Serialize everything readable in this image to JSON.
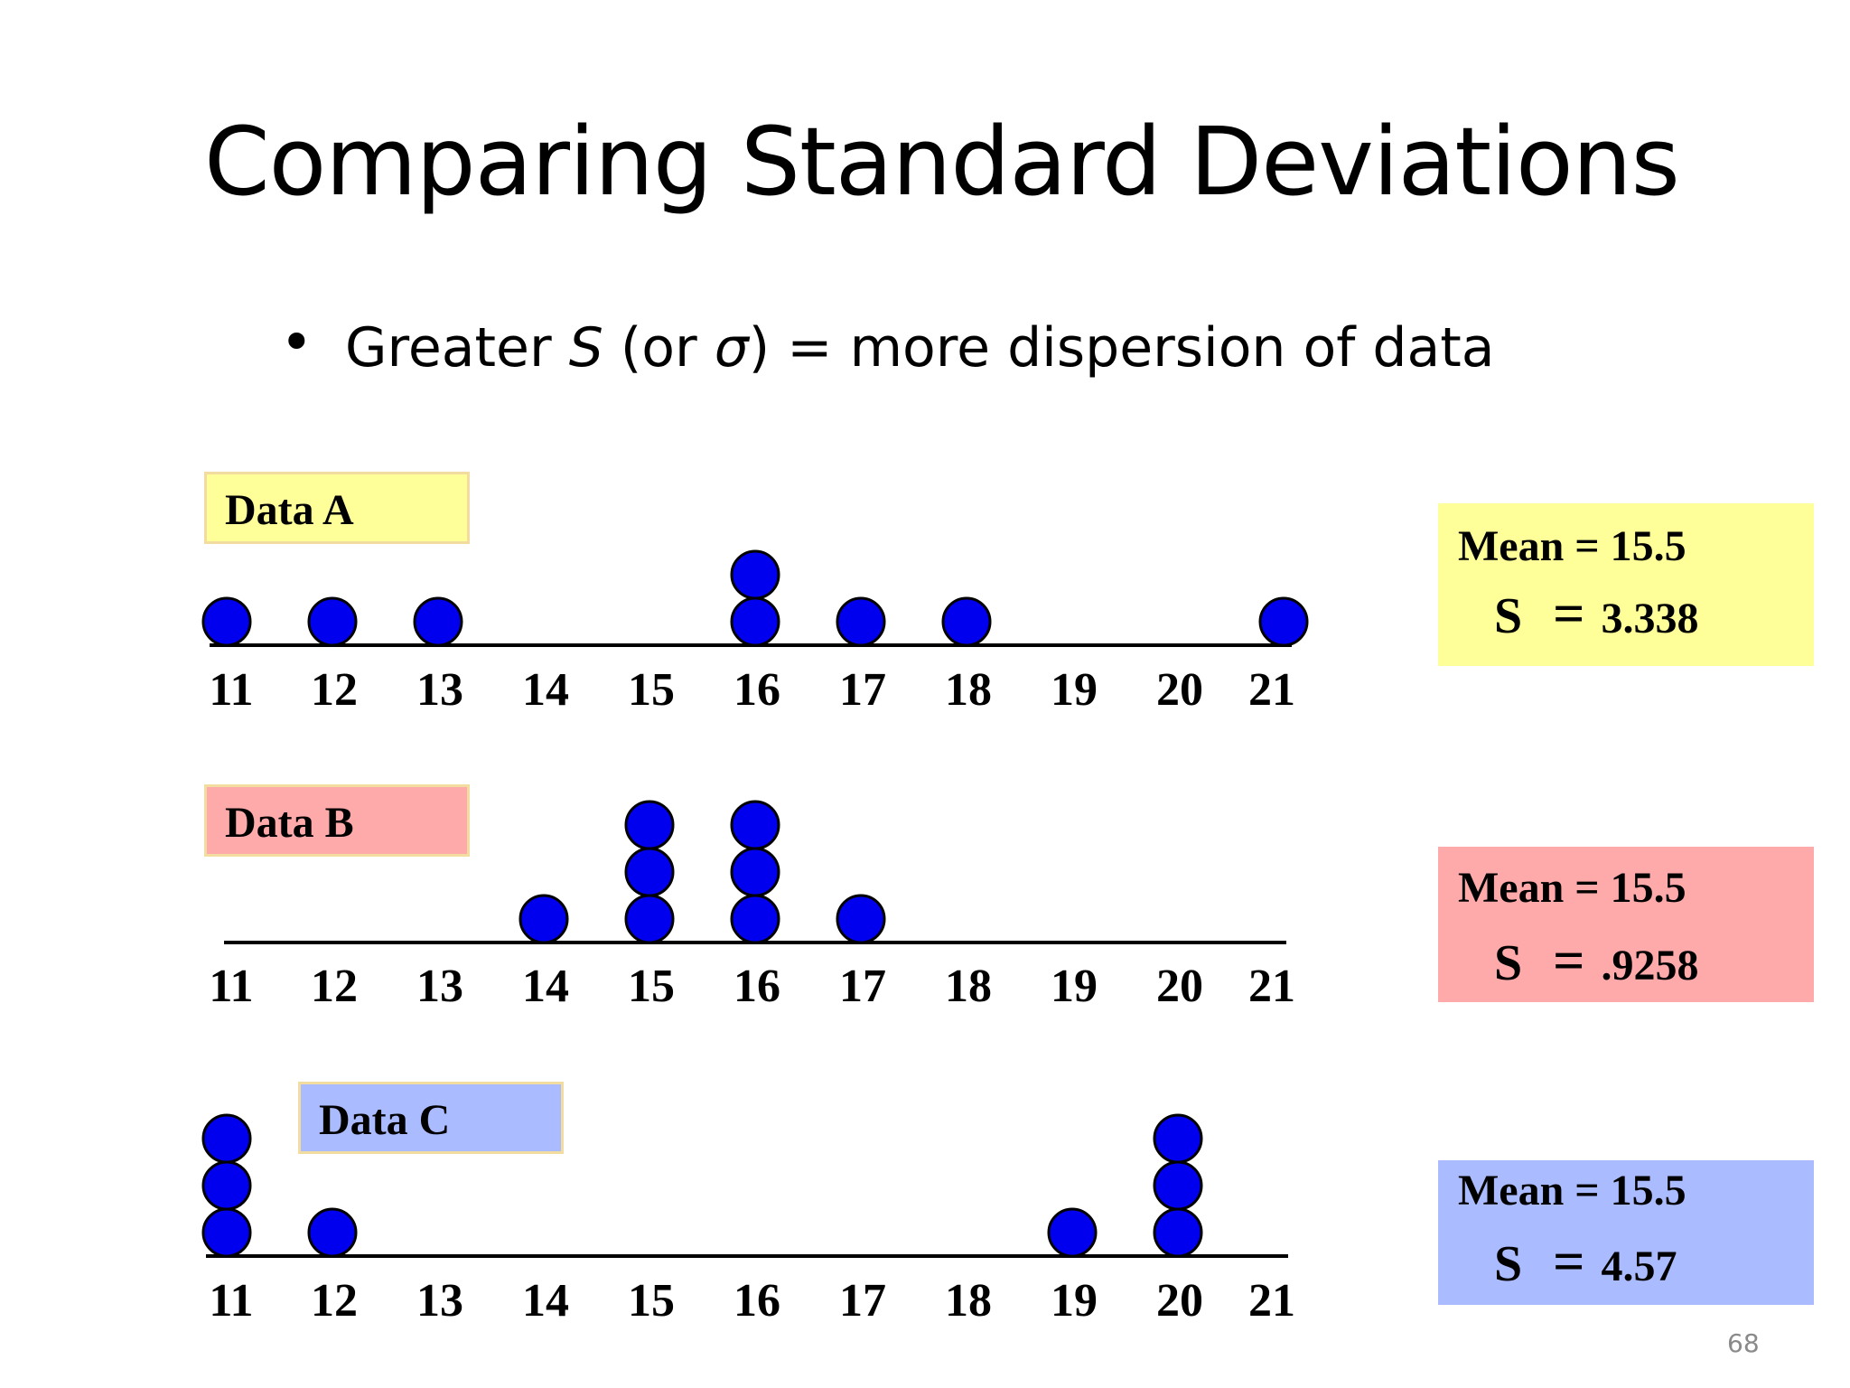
{
  "slide": {
    "title": "Comparing Standard Deviations",
    "bullet": {
      "marker": "•",
      "text_before": "Greater ",
      "s_symbol": "S",
      "text_middle": " (or ",
      "sigma_symbol": "σ",
      "text_after": ") = more dispersion of data"
    },
    "page_number": "68"
  },
  "chart_data": [
    {
      "type": "scatter",
      "name": "Data A",
      "x_ticks": [
        "11",
        "12",
        "13",
        "14",
        "15",
        "16",
        "17",
        "18",
        "19",
        "20",
        "21"
      ],
      "xlim": [
        11,
        21
      ],
      "points": [
        11,
        12,
        13,
        16,
        16,
        17,
        18,
        21
      ],
      "label_color": "#ffff99",
      "stats": {
        "mean_text": "Mean = 15.5",
        "s_symbol": "S",
        "eq": "=",
        "s_value": "3.338",
        "box_color": "#ffff99"
      }
    },
    {
      "type": "scatter",
      "name": "Data B",
      "x_ticks": [
        "11",
        "12",
        "13",
        "14",
        "15",
        "16",
        "17",
        "18",
        "19",
        "20",
        "21"
      ],
      "xlim": [
        11,
        21
      ],
      "points": [
        14,
        15,
        15,
        15,
        16,
        16,
        16,
        17
      ],
      "label_color": "#ffaaaa",
      "stats": {
        "mean_text": "Mean = 15.5",
        "s_symbol": "S",
        "eq": "=",
        "s_value": ".9258",
        "box_color": "#ffaaaa"
      }
    },
    {
      "type": "scatter",
      "name": "Data C",
      "x_ticks": [
        "11",
        "12",
        "13",
        "14",
        "15",
        "16",
        "17",
        "18",
        "19",
        "20",
        "21"
      ],
      "xlim": [
        11,
        21
      ],
      "points": [
        11,
        11,
        11,
        12,
        19,
        20,
        20,
        20
      ],
      "label_color": "#aabbff",
      "stats": {
        "mean_text": "Mean = 15.5",
        "s_symbol": "S",
        "eq": "=",
        "s_value": "4.57",
        "box_color": "#aabbff"
      }
    }
  ],
  "colors": {
    "dot_fill": "#0000ee",
    "dot_stroke": "#000000",
    "axis": "#000000"
  }
}
